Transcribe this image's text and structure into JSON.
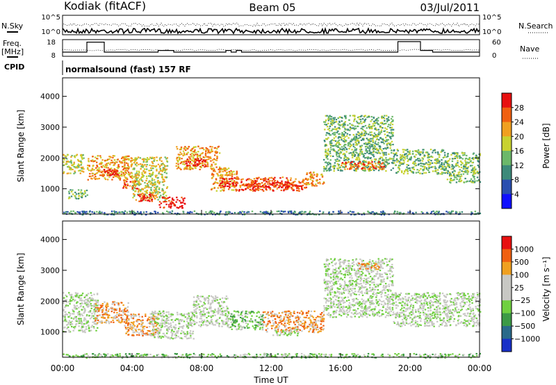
{
  "header": {
    "station": "Kodiak (fitACF)",
    "beam": "Beam 05",
    "date": "03/Jul/2011"
  },
  "summary_panels": {
    "nsky_label": "N.Sky",
    "nsearch_label": "N.Search",
    "freq_label": "Freq.",
    "freq_unit": "[MHz]",
    "nave_label": "Nave",
    "cpid_label": "CPID",
    "cpid_text": "normalsound (fast) 157 RF",
    "noise_ticks": [
      "10^5",
      "10^0"
    ],
    "freq_ticks": [
      "18",
      "8"
    ],
    "nave_ticks": [
      "60",
      "0"
    ],
    "freq_steps": [
      {
        "t0": 0,
        "t1": 1.4,
        "mhz": 10.5
      },
      {
        "t0": 1.4,
        "t1": 2.4,
        "mhz": 16.5
      },
      {
        "t0": 2.4,
        "t1": 5.5,
        "mhz": 10.5
      },
      {
        "t0": 5.5,
        "t1": 6.4,
        "mhz": 11.5
      },
      {
        "t0": 6.4,
        "t1": 9.4,
        "mhz": 10.5
      },
      {
        "t0": 9.4,
        "t1": 9.7,
        "mhz": 11.5
      },
      {
        "t0": 9.7,
        "t1": 10.0,
        "mhz": 10.5
      },
      {
        "t0": 10.0,
        "t1": 10.3,
        "mhz": 11.5
      },
      {
        "t0": 10.3,
        "t1": 19.3,
        "mhz": 10.5
      },
      {
        "t0": 19.3,
        "t1": 20.6,
        "mhz": 16.8
      },
      {
        "t0": 20.6,
        "t1": 21.3,
        "mhz": 11.5
      },
      {
        "t0": 21.3,
        "t1": 24,
        "mhz": 10.5
      }
    ]
  },
  "axes": {
    "x_ticks": [
      "00:00",
      "04:00",
      "08:00",
      "12:00",
      "16:00",
      "20:00",
      "00:00"
    ],
    "x_title": "Time UT",
    "y_ticks": [
      "1000",
      "2000",
      "3000",
      "4000"
    ],
    "y_title": "Slant Range [km]"
  },
  "chart_data": [
    {
      "type": "heatmap",
      "quantity": "power",
      "xlabel": "Time UT",
      "ylabel": "Slant Range [km]",
      "xlim": [
        0,
        24
      ],
      "ylim": [
        180,
        4600
      ],
      "colorbar": {
        "label": "Power [dB]",
        "ticks": [
          "4",
          "8",
          "12",
          "16",
          "20",
          "24",
          "28"
        ],
        "colors": [
          "#1010ff",
          "#2a4fb0",
          "#3d8a7a",
          "#6cb86a",
          "#c8d230",
          "#f0a020",
          "#f06010",
          "#e81010"
        ]
      },
      "regions": [
        {
          "t0": 0.0,
          "t1": 1.2,
          "r0": 1500,
          "r1": 2150,
          "level": 4
        },
        {
          "t0": 0.3,
          "t1": 1.4,
          "r0": 700,
          "r1": 1000,
          "level": 3
        },
        {
          "t0": 1.4,
          "t1": 4.0,
          "r0": 1300,
          "r1": 2100,
          "level": 5
        },
        {
          "t0": 2.2,
          "t1": 3.2,
          "r0": 1450,
          "r1": 1650,
          "level": 7
        },
        {
          "t0": 3.4,
          "t1": 4.4,
          "r0": 1000,
          "r1": 1300,
          "level": 6
        },
        {
          "t0": 4.0,
          "t1": 6.0,
          "r0": 650,
          "r1": 2050,
          "level": 4
        },
        {
          "t0": 4.3,
          "t1": 5.2,
          "r0": 600,
          "r1": 850,
          "level": 7
        },
        {
          "t0": 5.5,
          "t1": 7.0,
          "r0": 400,
          "r1": 750,
          "level": 7
        },
        {
          "t0": 6.5,
          "t1": 9.0,
          "r0": 1650,
          "r1": 2400,
          "level": 5
        },
        {
          "t0": 7.0,
          "t1": 8.2,
          "r0": 1750,
          "r1": 2000,
          "level": 7
        },
        {
          "t0": 8.5,
          "t1": 10.0,
          "r0": 950,
          "r1": 1700,
          "level": 5
        },
        {
          "t0": 9.0,
          "t1": 10.0,
          "r0": 1050,
          "r1": 1400,
          "level": 7
        },
        {
          "t0": 10.0,
          "t1": 14.0,
          "r0": 950,
          "r1": 1400,
          "level": 6
        },
        {
          "t0": 10.5,
          "t1": 13.8,
          "r0": 1050,
          "r1": 1250,
          "level": 7
        },
        {
          "t0": 14.0,
          "t1": 15.0,
          "r0": 1100,
          "r1": 1600,
          "level": 5
        },
        {
          "t0": 15.0,
          "t1": 19.0,
          "r0": 1600,
          "r1": 3400,
          "level": 3
        },
        {
          "t0": 16.0,
          "t1": 18.5,
          "r0": 1650,
          "r1": 1900,
          "level": 6
        },
        {
          "t0": 19.0,
          "t1": 22.0,
          "r0": 1500,
          "r1": 2300,
          "level": 3
        },
        {
          "t0": 22.0,
          "t1": 24.0,
          "r0": 1200,
          "r1": 2200,
          "level": 3
        },
        {
          "t0": 0.0,
          "t1": 24.0,
          "r0": 180,
          "r1": 300,
          "level": 2
        }
      ]
    },
    {
      "type": "heatmap",
      "quantity": "velocity",
      "xlabel": "Time UT",
      "ylabel": "Slant Range [km]",
      "xlim": [
        0,
        24
      ],
      "ylim": [
        180,
        4600
      ],
      "colorbar": {
        "label": "Velocity [m s⁻¹]",
        "ticks": [
          "1000",
          "500",
          "100",
          "25",
          "−25",
          "−100",
          "−500",
          "−1000"
        ],
        "colors": [
          "#1830c8",
          "#2a6a8a",
          "#3c9a46",
          "#70d040",
          "#c8c8c4",
          "#c8c8c4",
          "#f0a020",
          "#f06010",
          "#e81010"
        ]
      },
      "regions": [
        {
          "t0": 0.0,
          "t1": 2.0,
          "r0": 1000,
          "r1": 2300,
          "level": 4
        },
        {
          "t0": 1.8,
          "t1": 3.8,
          "r0": 1300,
          "r1": 2000,
          "level": 6
        },
        {
          "t0": 3.5,
          "t1": 5.5,
          "r0": 900,
          "r1": 1600,
          "level": 6
        },
        {
          "t0": 5.0,
          "t1": 7.5,
          "r0": 800,
          "r1": 1700,
          "level": 4
        },
        {
          "t0": 7.5,
          "t1": 9.5,
          "r0": 1200,
          "r1": 2200,
          "level": 4
        },
        {
          "t0": 9.5,
          "t1": 11.5,
          "r0": 1100,
          "r1": 1700,
          "level": 3
        },
        {
          "t0": 11.5,
          "t1": 15.0,
          "r0": 1000,
          "r1": 1700,
          "level": 6
        },
        {
          "t0": 12.0,
          "t1": 13.5,
          "r0": 900,
          "r1": 1100,
          "level": 4
        },
        {
          "t0": 15.0,
          "t1": 19.0,
          "r0": 1500,
          "r1": 3400,
          "level": 4
        },
        {
          "t0": 17.0,
          "t1": 18.2,
          "r0": 3050,
          "r1": 3250,
          "level": 6
        },
        {
          "t0": 19.0,
          "t1": 24.0,
          "r0": 1200,
          "r1": 2300,
          "level": 4
        },
        {
          "t0": 0.0,
          "t1": 24.0,
          "r0": 180,
          "r1": 320,
          "level": 3
        }
      ]
    }
  ]
}
